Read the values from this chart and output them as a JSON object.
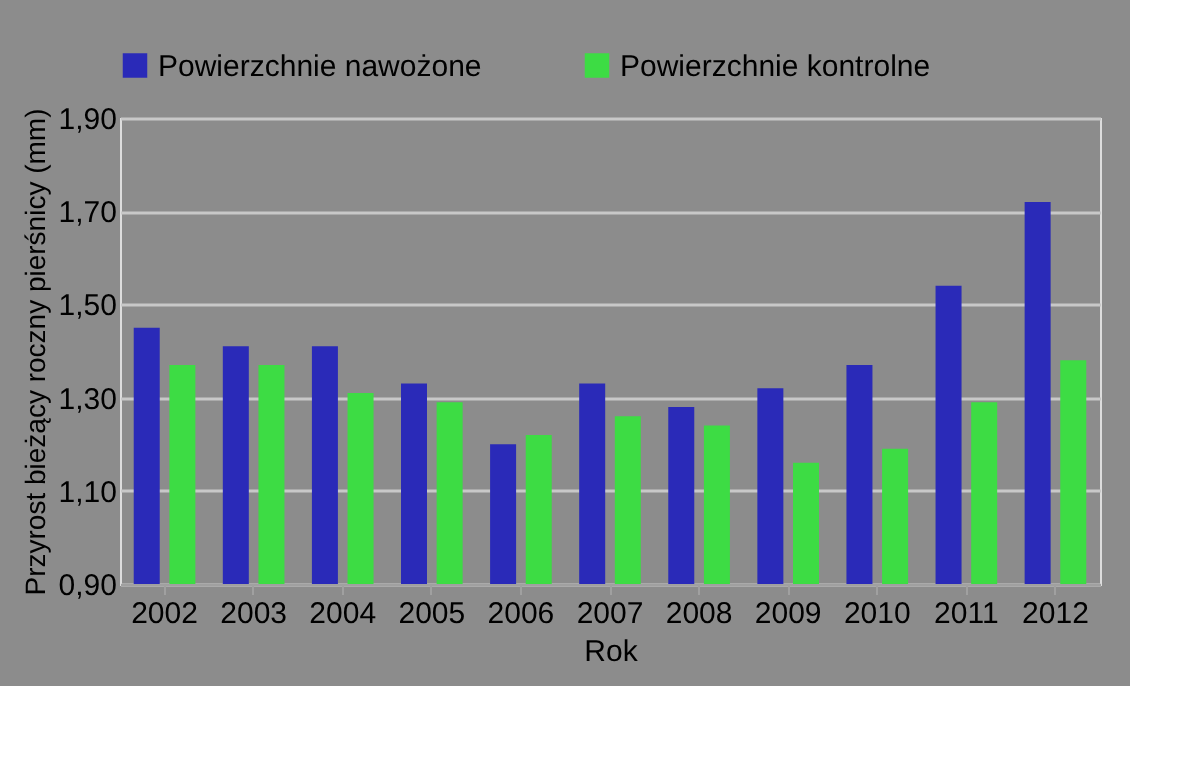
{
  "chart_data": {
    "type": "bar",
    "xlabel": "Rok",
    "ylabel": "Przyrost bieżący roczny pierśnicy (mm)",
    "categories": [
      "2002",
      "2003",
      "2004",
      "2005",
      "2006",
      "2007",
      "2008",
      "2009",
      "2010",
      "2011",
      "2012"
    ],
    "series": [
      {
        "name": "Powierzchnie nawożone",
        "color": "#2a2ab8",
        "values": [
          1.45,
          1.41,
          1.41,
          1.33,
          1.2,
          1.33,
          1.28,
          1.32,
          1.37,
          1.54,
          1.72
        ]
      },
      {
        "name": "Powierzchnie kontrolne",
        "color": "#3ddc44",
        "values": [
          1.37,
          1.37,
          1.31,
          1.29,
          1.22,
          1.26,
          1.24,
          1.16,
          1.19,
          1.29,
          1.38
        ]
      }
    ],
    "ylim": [
      0.9,
      1.9
    ],
    "yticks": [
      {
        "value": 0.9,
        "label": "0,90"
      },
      {
        "value": 1.1,
        "label": "1,10"
      },
      {
        "value": 1.3,
        "label": "1,30"
      },
      {
        "value": 1.5,
        "label": "1,50"
      },
      {
        "value": 1.7,
        "label": "1,70"
      },
      {
        "value": 1.9,
        "label": "1,90"
      }
    ],
    "grid": "y",
    "legend": "top"
  }
}
